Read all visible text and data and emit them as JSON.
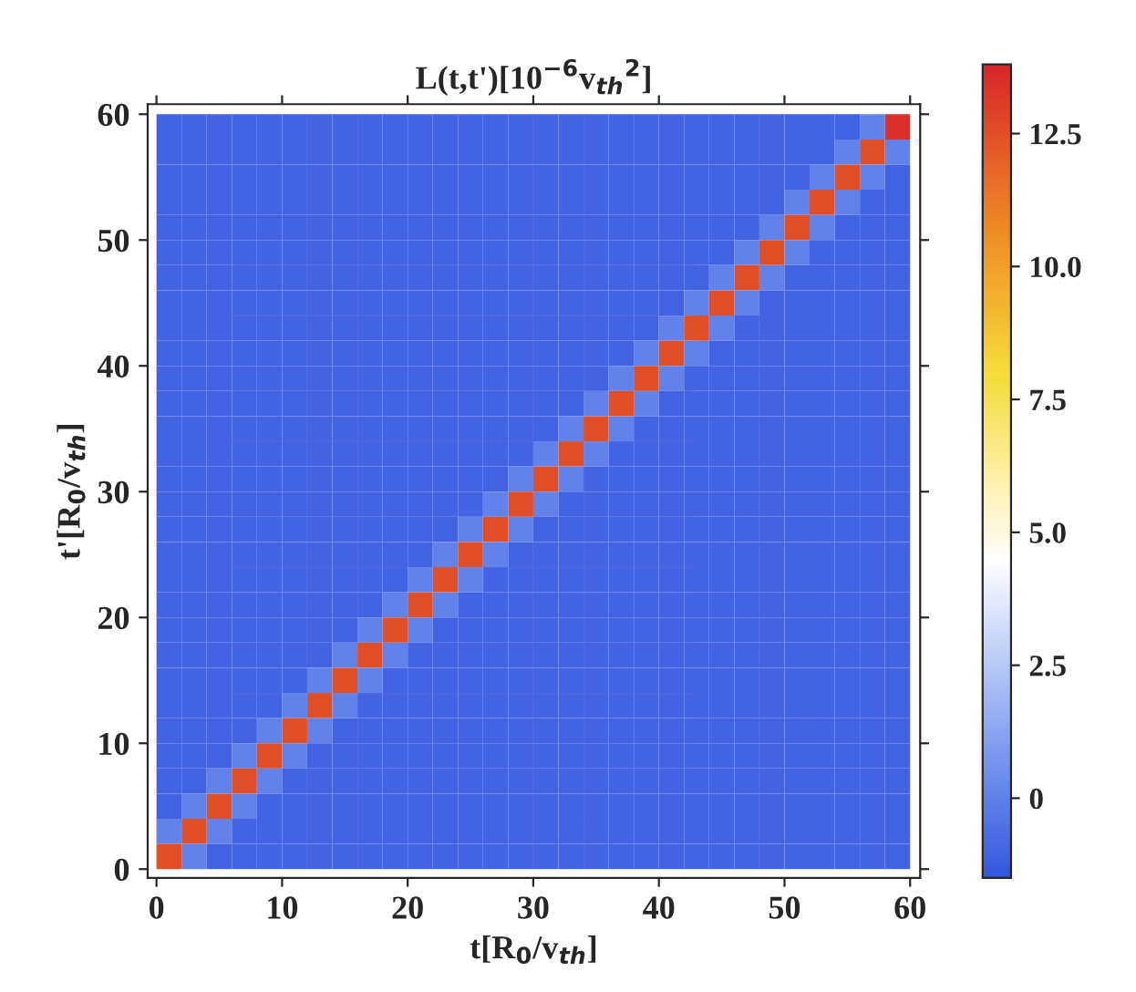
{
  "chart_data": {
    "type": "heatmap",
    "title": "L(t,t')[10$^{−6}$v$_{th}$$^{2}$]",
    "xlabel": "t[R$_{0}$/v$_{th}$]",
    "ylabel": "t'[R$_{0}$/v$_{th}$]",
    "x": [
      1,
      3,
      5,
      7,
      9,
      11,
      13,
      15,
      17,
      19,
      21,
      23,
      25,
      27,
      29,
      31,
      33,
      35,
      37,
      39,
      41,
      43,
      45,
      47,
      49,
      51,
      53,
      55,
      57,
      59
    ],
    "y": [
      59,
      57,
      55,
      53,
      51,
      49,
      47,
      45,
      43,
      41,
      39,
      37,
      35,
      33,
      31,
      29,
      27,
      25,
      23,
      21,
      19,
      17,
      15,
      13,
      11,
      9,
      7,
      5,
      3,
      1
    ],
    "xlim": [
      -0.7,
      60.8
    ],
    "ylim": [
      -0.7,
      60.8
    ],
    "xticks": [
      0,
      10,
      20,
      30,
      40,
      50,
      60
    ],
    "yticks": [
      0,
      10,
      20,
      30,
      40,
      50,
      60
    ],
    "clim": [
      -1.5,
      13.8
    ],
    "cticks": [
      0,
      2.5,
      {
        "value": 5,
        "label": "5.0"
      },
      {
        "value": 7.5,
        "label": "7.5"
      },
      {
        "value": 10,
        "label": "10.0"
      },
      {
        "value": 12.5,
        "label": "12.5"
      }
    ],
    "cells": [
      [
        -1,
        -1,
        -1,
        -1,
        -1,
        -1,
        -1,
        -1,
        -1,
        -1,
        -1,
        -1,
        -1,
        -1,
        -1,
        -1,
        -1,
        -1,
        -1,
        -1,
        -1,
        -1,
        -1,
        -1,
        -1,
        -1,
        -1,
        -1,
        0,
        13.5
      ],
      [
        -1,
        -1,
        -1,
        -1,
        -1,
        -1,
        -1,
        -1,
        -1,
        -1,
        -1,
        -1,
        -1,
        -1,
        -1,
        -1,
        -1,
        -1,
        -1,
        -1,
        -1,
        -1,
        -1,
        -1,
        -1,
        -1,
        -1,
        0,
        12.5,
        0
      ],
      [
        -1,
        -1,
        -1,
        -1,
        -1,
        -1,
        -1,
        -1,
        -1,
        -1,
        -1,
        -1,
        -1,
        -1,
        -1,
        -1,
        -1,
        -1,
        -1,
        -1,
        -1,
        -1,
        -1,
        -1,
        -1,
        -1,
        0,
        12.5,
        0,
        -1
      ],
      [
        -1,
        -1,
        -1,
        -1,
        -1,
        -1,
        -1,
        -1,
        -1,
        -1,
        -1,
        -1,
        -1,
        -1,
        -1,
        -1,
        -1,
        -1,
        -1,
        -1,
        -1,
        -1,
        -1,
        -1,
        -1,
        0,
        12.5,
        0,
        -1,
        -1
      ],
      [
        -1,
        -1,
        -1,
        -1,
        -1,
        -1,
        -1,
        -1,
        -1,
        -1,
        -1,
        -1,
        -1,
        -1,
        -1,
        -1,
        -1,
        -1,
        -1,
        -1,
        -1,
        -1,
        -1,
        -1,
        0,
        12.5,
        0,
        -1,
        -1,
        -1
      ],
      [
        -1,
        -1,
        -1,
        -1,
        -1,
        -1,
        -1,
        -1,
        -1,
        -1,
        -1,
        -1,
        -1,
        -1,
        -1,
        -1,
        -1,
        -1,
        -1,
        -1,
        -1,
        -1,
        -1,
        0,
        12.5,
        0,
        -1,
        -1,
        -1,
        -1
      ],
      [
        -1,
        -1,
        -1,
        -1,
        -1,
        -1,
        -1,
        -1,
        -1,
        -1,
        -1,
        -1,
        -1,
        -1,
        -1,
        -1,
        -1,
        -1,
        -1,
        -1,
        -1,
        -1,
        0,
        12.5,
        0,
        -1,
        -1,
        -1,
        -1,
        -1
      ],
      [
        -1,
        -1,
        -1,
        -1,
        -1,
        -1,
        -1,
        -1,
        -1,
        -1,
        -1,
        -1,
        -1,
        -1,
        -1,
        -1,
        -1,
        -1,
        -1,
        -1,
        -1,
        0,
        12.5,
        0,
        -1,
        -1,
        -1,
        -1,
        -1,
        -1
      ],
      [
        -1,
        -1,
        -1,
        -1,
        -1,
        -1,
        -1,
        -1,
        -1,
        -1,
        -1,
        -1,
        -1,
        -1,
        -1,
        -1,
        -1,
        -1,
        -1,
        -1,
        0,
        12.5,
        0,
        -1,
        -1,
        -1,
        -1,
        -1,
        -1,
        -1
      ],
      [
        -1,
        -1,
        -1,
        -1,
        -1,
        -1,
        -1,
        -1,
        -1,
        -1,
        -1,
        -1,
        -1,
        -1,
        -1,
        -1,
        -1,
        -1,
        -1,
        0,
        12.5,
        0,
        -1,
        -1,
        -1,
        -1,
        -1,
        -1,
        -1,
        -1
      ],
      [
        -1,
        -1,
        -1,
        -1,
        -1,
        -1,
        -1,
        -1,
        -1,
        -1,
        -1,
        -1,
        -1,
        -1,
        -1,
        -1,
        -1,
        -1,
        0,
        12.5,
        0,
        -1,
        -1,
        -1,
        -1,
        -1,
        -1,
        -1,
        -1,
        -1
      ],
      [
        -1,
        -1,
        -1,
        -1,
        -1,
        -1,
        -1,
        -1,
        -1,
        -1,
        -1,
        -1,
        -1,
        -1,
        -1,
        -1,
        -1,
        0,
        12.5,
        0,
        -1,
        -1,
        -1,
        -1,
        -1,
        -1,
        -1,
        -1,
        -1,
        -1
      ],
      [
        -1,
        -1,
        -1,
        -1,
        -1,
        -1,
        -1,
        -1,
        -1,
        -1,
        -1,
        -1,
        -1,
        -1,
        -1,
        -1,
        0,
        12.5,
        0,
        -1,
        -1,
        -1,
        -1,
        -1,
        -1,
        -1,
        -1,
        -1,
        -1,
        -1
      ],
      [
        -1,
        -1,
        -1,
        -1,
        -1,
        -1,
        -1,
        -1,
        -1,
        -1,
        -1,
        -1,
        -1,
        -1,
        -1,
        0,
        12.5,
        0,
        -1,
        -1,
        -1,
        -1,
        -1,
        -1,
        -1,
        -1,
        -1,
        -1,
        -1,
        -1
      ],
      [
        -1,
        -1,
        -1,
        -1,
        -1,
        -1,
        -1,
        -1,
        -1,
        -1,
        -1,
        -1,
        -1,
        -1,
        0,
        12.5,
        0,
        -1,
        -1,
        -1,
        -1,
        -1,
        -1,
        -1,
        -1,
        -1,
        -1,
        -1,
        -1,
        -1
      ],
      [
        -1,
        -1,
        -1,
        -1,
        -1,
        -1,
        -1,
        -1,
        -1,
        -1,
        -1,
        -1,
        -1,
        0,
        12.5,
        0,
        -1,
        -1,
        -1,
        -1,
        -1,
        -1,
        -1,
        -1,
        -1,
        -1,
        -1,
        -1,
        -1,
        -1
      ],
      [
        -1,
        -1,
        -1,
        -1,
        -1,
        -1,
        -1,
        -1,
        -1,
        -1,
        -1,
        -1,
        0,
        12.5,
        0,
        -1,
        -1,
        -1,
        -1,
        -1,
        -1,
        -1,
        -1,
        -1,
        -1,
        -1,
        -1,
        -1,
        -1,
        -1
      ],
      [
        -1,
        -1,
        -1,
        -1,
        -1,
        -1,
        -1,
        -1,
        -1,
        -1,
        -1,
        0,
        12.5,
        0,
        -1,
        -1,
        -1,
        -1,
        -1,
        -1,
        -1,
        -1,
        -1,
        -1,
        -1,
        -1,
        -1,
        -1,
        -1,
        -1
      ],
      [
        -1,
        -1,
        -1,
        -1,
        -1,
        -1,
        -1,
        -1,
        -1,
        -1,
        0,
        12.5,
        0,
        -1,
        -1,
        -1,
        -1,
        -1,
        -1,
        -1,
        -1,
        -1,
        -1,
        -1,
        -1,
        -1,
        -1,
        -1,
        -1,
        -1
      ],
      [
        -1,
        -1,
        -1,
        -1,
        -1,
        -1,
        -1,
        -1,
        -1,
        0,
        12.5,
        0,
        -1,
        -1,
        -1,
        -1,
        -1,
        -1,
        -1,
        -1,
        -1,
        -1,
        -1,
        -1,
        -1,
        -1,
        -1,
        -1,
        -1,
        -1
      ],
      [
        -1,
        -1,
        -1,
        -1,
        -1,
        -1,
        -1,
        -1,
        0,
        12.5,
        0,
        -1,
        -1,
        -1,
        -1,
        -1,
        -1,
        -1,
        -1,
        -1,
        -1,
        -1,
        -1,
        -1,
        -1,
        -1,
        -1,
        -1,
        -1,
        -1
      ],
      [
        -1,
        -1,
        -1,
        -1,
        -1,
        -1,
        -1,
        0,
        12.5,
        0,
        -1,
        -1,
        -1,
        -1,
        -1,
        -1,
        -1,
        -1,
        -1,
        -1,
        -1,
        -1,
        -1,
        -1,
        -1,
        -1,
        -1,
        -1,
        -1,
        -1
      ],
      [
        -1,
        -1,
        -1,
        -1,
        -1,
        -1,
        0,
        12.5,
        0,
        -1,
        -1,
        -1,
        -1,
        -1,
        -1,
        -1,
        -1,
        -1,
        -1,
        -1,
        -1,
        -1,
        -1,
        -1,
        -1,
        -1,
        -1,
        -1,
        -1,
        -1
      ],
      [
        -1,
        -1,
        -1,
        -1,
        -1,
        0,
        12.5,
        0,
        -1,
        -1,
        -1,
        -1,
        -1,
        -1,
        -1,
        -1,
        -1,
        -1,
        -1,
        -1,
        -1,
        -1,
        -1,
        -1,
        -1,
        -1,
        -1,
        -1,
        -1,
        -1
      ],
      [
        -1,
        -1,
        -1,
        -1,
        0,
        12.5,
        0,
        -1,
        -1,
        -1,
        -1,
        -1,
        -1,
        -1,
        -1,
        -1,
        -1,
        -1,
        -1,
        -1,
        -1,
        -1,
        -1,
        -1,
        -1,
        -1,
        -1,
        -1,
        -1,
        -1
      ],
      [
        -1,
        -1,
        -1,
        0,
        12.5,
        0,
        -1,
        -1,
        -1,
        -1,
        -1,
        -1,
        -1,
        -1,
        -1,
        -1,
        -1,
        -1,
        -1,
        -1,
        -1,
        -1,
        -1,
        -1,
        -1,
        -1,
        -1,
        -1,
        -1,
        -1
      ],
      [
        -1,
        -1,
        0,
        12.5,
        0,
        -1,
        -1,
        -1,
        -1,
        -1,
        -1,
        -1,
        -1,
        -1,
        -1,
        -1,
        -1,
        -1,
        -1,
        -1,
        -1,
        -1,
        -1,
        -1,
        -1,
        -1,
        -1,
        -1,
        -1,
        -1
      ],
      [
        -1,
        0,
        12.5,
        0,
        -1,
        -1,
        -1,
        -1,
        -1,
        -1,
        -1,
        -1,
        -1,
        -1,
        -1,
        -1,
        -1,
        -1,
        -1,
        -1,
        -1,
        -1,
        -1,
        -1,
        -1,
        -1,
        -1,
        -1,
        -1,
        -1
      ],
      [
        0,
        12.5,
        0,
        -1,
        -1,
        -1,
        -1,
        -1,
        -1,
        -1,
        -1,
        -1,
        -1,
        -1,
        -1,
        -1,
        -1,
        -1,
        -1,
        -1,
        -1,
        -1,
        -1,
        -1,
        -1,
        -1,
        -1,
        -1,
        -1,
        -1
      ],
      [
        12.5,
        0,
        -1,
        -1,
        -1,
        -1,
        -1,
        -1,
        -1,
        -1,
        -1,
        -1,
        -1,
        -1,
        -1,
        -1,
        -1,
        -1,
        -1,
        -1,
        -1,
        -1,
        -1,
        -1,
        -1,
        -1,
        -1,
        -1,
        -1,
        -1
      ]
    ]
  }
}
